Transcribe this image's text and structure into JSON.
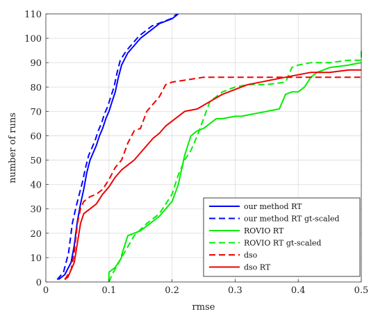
{
  "chart_data": {
    "type": "line",
    "xlabel": "rmse",
    "ylabel": "number of runs",
    "xlim": [
      0,
      0.5
    ],
    "ylim": [
      0,
      110
    ],
    "xticks": [
      0,
      0.1,
      0.2,
      0.3,
      0.4,
      0.5
    ],
    "xtick_labels": [
      "0",
      "0.1",
      "0.2",
      "0.3",
      "0.4",
      "0.5"
    ],
    "yticks": [
      0,
      10,
      20,
      30,
      40,
      50,
      60,
      70,
      80,
      90,
      100,
      110
    ],
    "ytick_labels": [
      "0",
      "10",
      "20",
      "30",
      "40",
      "50",
      "60",
      "70",
      "80",
      "90",
      "100",
      "110"
    ],
    "grid": true,
    "legend_position": "bottom-right",
    "series": [
      {
        "name": "our method RT",
        "color": "#0000ff",
        "dash": "solid",
        "x": [
          0.02,
          0.03,
          0.04,
          0.045,
          0.05,
          0.055,
          0.06,
          0.065,
          0.07,
          0.075,
          0.08,
          0.085,
          0.09,
          0.095,
          0.1,
          0.105,
          0.11,
          0.115,
          0.12,
          0.13,
          0.14,
          0.15,
          0.16,
          0.17,
          0.18,
          0.19,
          0.2,
          0.21
        ],
        "y": [
          1,
          3,
          8,
          15,
          25,
          32,
          38,
          45,
          50,
          53,
          56,
          60,
          63,
          67,
          70,
          74,
          78,
          84,
          89,
          94,
          97,
          100,
          102,
          104,
          106,
          107,
          108,
          110
        ]
      },
      {
        "name": "our method RT gt-scaled",
        "color": "#0000ff",
        "dash": "dashed",
        "x": [
          0.018,
          0.028,
          0.036,
          0.042,
          0.048,
          0.052,
          0.058,
          0.063,
          0.068,
          0.073,
          0.078,
          0.083,
          0.088,
          0.093,
          0.098,
          0.103,
          0.108,
          0.113,
          0.118,
          0.128,
          0.138,
          0.148,
          0.158,
          0.168,
          0.178,
          0.188,
          0.198,
          0.208
        ],
        "y": [
          1,
          4,
          12,
          24,
          31,
          35,
          41,
          47,
          52,
          55,
          58,
          62,
          65,
          69,
          72,
          76,
          80,
          86,
          91,
          95,
          98,
          101,
          103,
          105,
          106,
          107,
          108,
          110
        ]
      },
      {
        "name": "ROVIO RT",
        "color": "#00ee00",
        "dash": "solid",
        "x": [
          0.1,
          0.1,
          0.11,
          0.12,
          0.12,
          0.13,
          0.14,
          0.15,
          0.16,
          0.17,
          0.18,
          0.19,
          0.2,
          0.21,
          0.22,
          0.23,
          0.24,
          0.25,
          0.26,
          0.27,
          0.28,
          0.3,
          0.31,
          0.35,
          0.37,
          0.38,
          0.39,
          0.4,
          0.41,
          0.42,
          0.43,
          0.45,
          0.48,
          0.5
        ],
        "y": [
          0,
          4,
          6,
          10,
          11,
          19,
          20,
          21,
          23,
          25,
          27,
          30,
          33,
          40,
          52,
          60,
          62,
          63,
          65,
          67,
          67,
          68,
          68,
          70,
          71,
          77,
          78,
          78,
          80,
          84,
          86,
          88,
          89,
          90
        ]
      },
      {
        "name": "ROVIO RT gt-scaled",
        "color": "#00ee00",
        "dash": "dashed",
        "x": [
          0.1,
          0.105,
          0.12,
          0.14,
          0.16,
          0.18,
          0.19,
          0.2,
          0.21,
          0.22,
          0.23,
          0.24,
          0.25,
          0.26,
          0.27,
          0.28,
          0.29,
          0.3,
          0.32,
          0.35,
          0.38,
          0.39,
          0.4,
          0.42,
          0.45,
          0.48,
          0.5,
          0.5
        ],
        "y": [
          0,
          3,
          10,
          19,
          24,
          28,
          32,
          36,
          44,
          50,
          54,
          60,
          67,
          74,
          76,
          78,
          79,
          80,
          81,
          81,
          82,
          88,
          89,
          90,
          90,
          91,
          91,
          95
        ]
      },
      {
        "name": "dso",
        "color": "#ee0000",
        "dash": "dashed",
        "x": [
          0.03,
          0.04,
          0.045,
          0.05,
          0.055,
          0.06,
          0.07,
          0.08,
          0.09,
          0.1,
          0.11,
          0.12,
          0.13,
          0.14,
          0.15,
          0.16,
          0.17,
          0.18,
          0.19,
          0.2,
          0.25,
          0.3,
          0.35,
          0.4,
          0.45,
          0.5
        ],
        "y": [
          1,
          5,
          12,
          24,
          30,
          33,
          35,
          36,
          38,
          42,
          47,
          50,
          57,
          62,
          63,
          70,
          73,
          76,
          81,
          82,
          84,
          84,
          84,
          84,
          84,
          84
        ]
      },
      {
        "name": "dso RT",
        "color": "#ee0000",
        "dash": "solid",
        "x": [
          0.03,
          0.035,
          0.045,
          0.05,
          0.055,
          0.06,
          0.07,
          0.08,
          0.09,
          0.1,
          0.11,
          0.12,
          0.13,
          0.14,
          0.15,
          0.16,
          0.17,
          0.18,
          0.19,
          0.2,
          0.21,
          0.22,
          0.24,
          0.26,
          0.28,
          0.3,
          0.32,
          0.34,
          0.36,
          0.38,
          0.4,
          0.42,
          0.45,
          0.48,
          0.5
        ],
        "y": [
          1,
          2,
          8,
          16,
          24,
          28,
          30,
          32,
          36,
          39,
          43,
          46,
          48,
          50,
          53,
          56,
          59,
          61,
          64,
          66,
          68,
          70,
          71,
          74,
          77,
          79,
          81,
          82,
          83,
          84,
          85,
          86,
          86,
          87,
          87
        ]
      }
    ]
  }
}
